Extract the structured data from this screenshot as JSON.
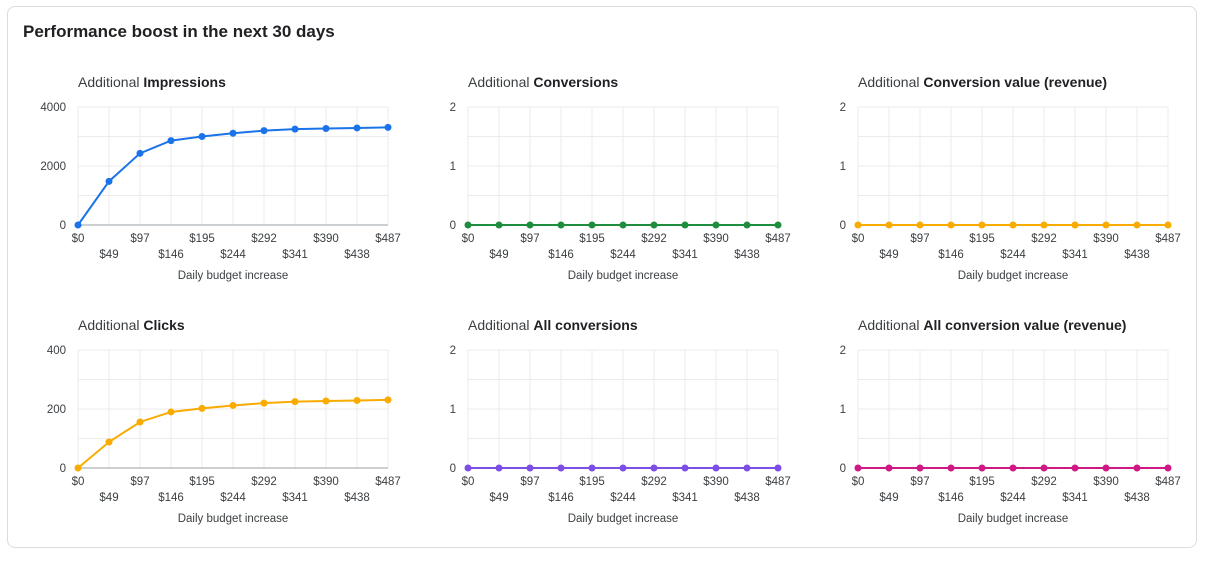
{
  "card": {
    "title": "Performance boost in the next 30 days"
  },
  "chart_data": [
    {
      "type": "line",
      "title_prefix": "Additional ",
      "title_bold": "Impressions",
      "xlabel": "Daily budget increase",
      "categories": [
        "$0",
        "$49",
        "$97",
        "$146",
        "$195",
        "$244",
        "$292",
        "$341",
        "$390",
        "$438",
        "$487"
      ],
      "values": [
        0,
        1480,
        2430,
        2860,
        3000,
        3110,
        3200,
        3250,
        3270,
        3290,
        3310
      ],
      "ylim": [
        0,
        4000
      ],
      "yticks": [
        0,
        2000,
        4000
      ],
      "color": "#1a73e8",
      "grid": true
    },
    {
      "type": "line",
      "title_prefix": "Additional ",
      "title_bold": "Conversions",
      "xlabel": "Daily budget increase",
      "categories": [
        "$0",
        "$49",
        "$97",
        "$146",
        "$195",
        "$244",
        "$292",
        "$341",
        "$390",
        "$438",
        "$487"
      ],
      "values": [
        0,
        0,
        0,
        0,
        0,
        0,
        0,
        0,
        0,
        0,
        0
      ],
      "ylim": [
        0,
        2
      ],
      "yticks": [
        0,
        1,
        2
      ],
      "color": "#1e8e3e",
      "grid": true
    },
    {
      "type": "line",
      "title_prefix": "Additional ",
      "title_bold": "Conversion value (revenue)",
      "xlabel": "Daily budget increase",
      "categories": [
        "$0",
        "$49",
        "$97",
        "$146",
        "$195",
        "$244",
        "$292",
        "$341",
        "$390",
        "$438",
        "$487"
      ],
      "values": [
        0,
        0,
        0,
        0,
        0,
        0,
        0,
        0,
        0,
        0,
        0
      ],
      "ylim": [
        0,
        2
      ],
      "yticks": [
        0,
        1,
        2
      ],
      "color": "#f9ab00",
      "grid": true
    },
    {
      "type": "line",
      "title_prefix": "Additional ",
      "title_bold": "Clicks",
      "xlabel": "Daily budget increase",
      "categories": [
        "$0",
        "$49",
        "$97",
        "$146",
        "$195",
        "$244",
        "$292",
        "$341",
        "$390",
        "$438",
        "$487"
      ],
      "values": [
        0,
        88,
        156,
        190,
        202,
        212,
        220,
        225,
        227,
        229,
        231
      ],
      "ylim": [
        0,
        400
      ],
      "yticks": [
        0,
        200,
        400
      ],
      "color": "#f9ab00",
      "grid": true
    },
    {
      "type": "line",
      "title_prefix": "Additional ",
      "title_bold": "All conversions",
      "xlabel": "Daily budget increase",
      "categories": [
        "$0",
        "$49",
        "$97",
        "$146",
        "$195",
        "$244",
        "$292",
        "$341",
        "$390",
        "$438",
        "$487"
      ],
      "values": [
        0,
        0,
        0,
        0,
        0,
        0,
        0,
        0,
        0,
        0,
        0
      ],
      "ylim": [
        0,
        2
      ],
      "yticks": [
        0,
        1,
        2
      ],
      "color": "#7b4ee6",
      "grid": true
    },
    {
      "type": "line",
      "title_prefix": "Additional ",
      "title_bold": "All conversion value (revenue)",
      "xlabel": "Daily budget increase",
      "categories": [
        "$0",
        "$49",
        "$97",
        "$146",
        "$195",
        "$244",
        "$292",
        "$341",
        "$390",
        "$438",
        "$487"
      ],
      "values": [
        0,
        0,
        0,
        0,
        0,
        0,
        0,
        0,
        0,
        0,
        0
      ],
      "ylim": [
        0,
        2
      ],
      "yticks": [
        0,
        1,
        2
      ],
      "color": "#d01884",
      "grid": true
    }
  ]
}
